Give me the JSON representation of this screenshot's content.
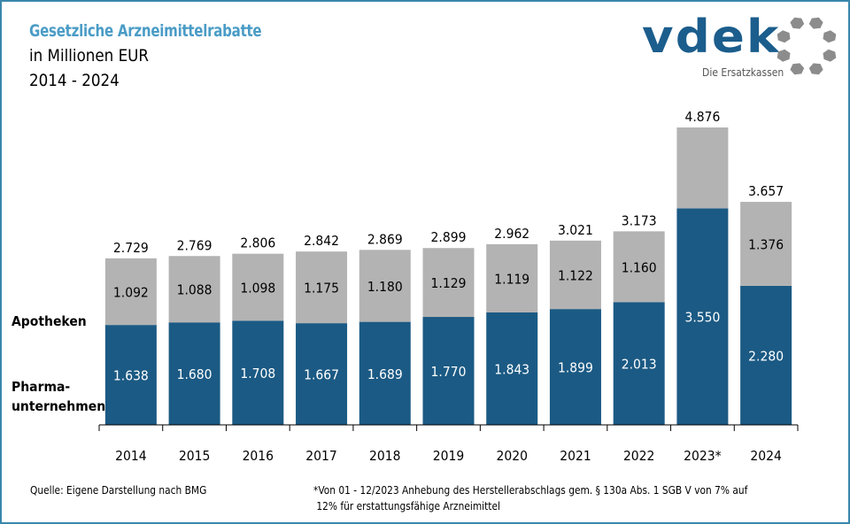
{
  "header": {
    "title": "Gesetzliche Arzneimittelrabatte",
    "subtitle": "in Millionen EUR",
    "period": "2014 - 2024"
  },
  "logo": {
    "wordmark": "vdek",
    "tagline": "Die Ersatzkassen"
  },
  "colors": {
    "pharma": "#1b5a84",
    "apotheken": "#b3b3b3",
    "title": "#4a9cc6",
    "frame": "#3a87ab"
  },
  "chart_data": {
    "type": "bar",
    "stacked": true,
    "title": "Gesetzliche Arzneimittelrabatte",
    "subtitle": "in Millionen EUR, 2014 - 2024",
    "xlabel": "",
    "ylabel": "",
    "grid": false,
    "legend_placement": "left",
    "categories": [
      "2014",
      "2015",
      "2016",
      "2017",
      "2018",
      "2019",
      "2020",
      "2021",
      "2022",
      "2023*",
      "2024"
    ],
    "series": [
      {
        "name": "Pharmaunternehmen",
        "legend_label_lines": [
          "Pharma-",
          "unternehmen"
        ],
        "values": [
          1638,
          1680,
          1708,
          1667,
          1689,
          1770,
          1843,
          1899,
          2013,
          3550,
          2280
        ],
        "labels": [
          "1.638",
          "1.680",
          "1.708",
          "1.667",
          "1.689",
          "1.770",
          "1.843",
          "1.899",
          "2.013",
          "3.550",
          "2.280"
        ]
      },
      {
        "name": "Apotheken",
        "legend_label_lines": [
          "Apotheken"
        ],
        "values": [
          1092,
          1088,
          1098,
          1175,
          1180,
          1129,
          1119,
          1122,
          1160,
          1326,
          1376
        ],
        "labels": [
          "1.092",
          "1.088",
          "1.098",
          "1.175",
          "1.180",
          "1.129",
          "1.119",
          "1.122",
          "1.160",
          "",
          "1.376"
        ]
      }
    ],
    "totals": [
      2729,
      2769,
      2806,
      2842,
      2869,
      2899,
      2962,
      3021,
      3173,
      4876,
      3657
    ],
    "total_labels": [
      "2.729",
      "2.769",
      "2.806",
      "2.842",
      "2.869",
      "2.899",
      "2.962",
      "3.021",
      "3.173",
      "4.876",
      "3.657"
    ],
    "ylim": [
      0,
      5000
    ]
  },
  "footer": {
    "source": "Quelle: Eigene Darstellung nach BMG",
    "note_line1": "*Von 01 - 12/2023 Anhebung des Herstellerabschlags gem. § 130a Abs. 1 SGB V von 7% auf",
    "note_line2": " 12% für erstattungsfähige Arzneimittel"
  }
}
